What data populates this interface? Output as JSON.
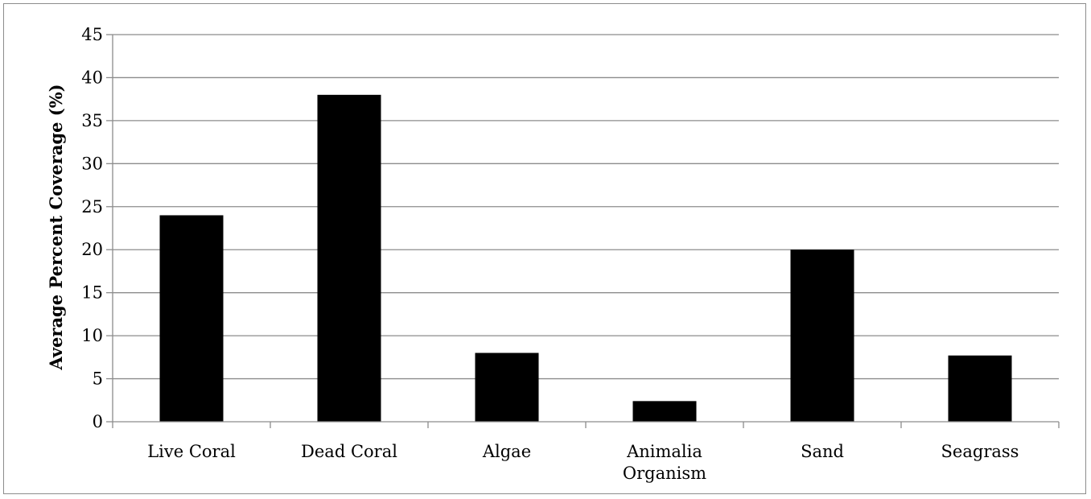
{
  "chart_data": {
    "type": "bar",
    "title": "",
    "xlabel": "",
    "ylabel": "Average Percent Coverage (%)",
    "categories": [
      [
        "Live Coral"
      ],
      [
        "Dead Coral"
      ],
      [
        "Algae"
      ],
      [
        "Animalia",
        "Organism"
      ],
      [
        "Sand"
      ],
      [
        "Seagrass"
      ]
    ],
    "values": [
      24,
      38,
      8,
      2.4,
      20,
      7.7
    ],
    "ylim": [
      0,
      45
    ],
    "yticks": [
      0,
      5,
      10,
      15,
      20,
      25,
      30,
      35,
      40,
      45
    ],
    "grid": true,
    "legend": "none",
    "bar_color": "#000000",
    "grid_color": "#8c8c8c"
  }
}
